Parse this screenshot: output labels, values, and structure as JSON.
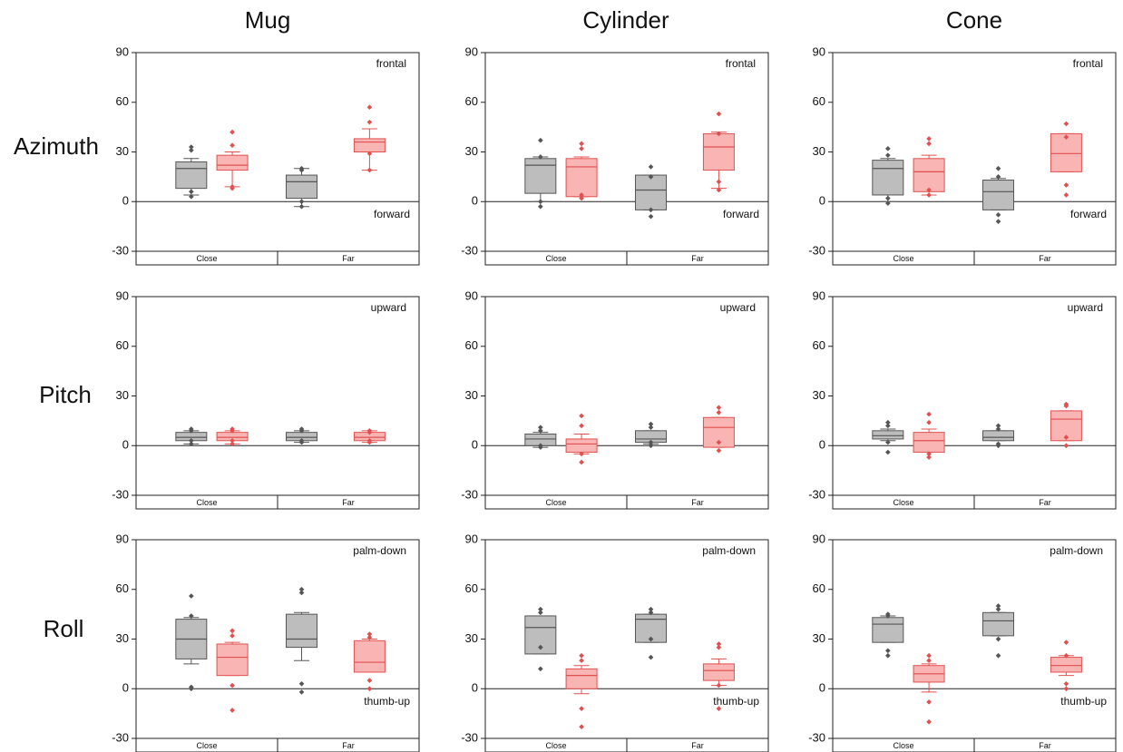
{
  "column_titles": [
    "Mug",
    "Cylinder",
    "Cone"
  ],
  "row_titles": [
    "Azimuth",
    "Pitch",
    "Roll"
  ],
  "chart_data": [
    {
      "type": "box",
      "categories": [
        "Close",
        "Far"
      ],
      "ylim": [
        -30,
        90
      ],
      "yticks": [
        -30,
        0,
        30,
        60,
        90
      ],
      "top_label": "frontal",
      "bottom_label": "forward",
      "series": [
        {
          "color": "#bdbdbd",
          "edge": "#555555",
          "boxes": [
            {
              "whislo": 4,
              "q1": 8,
              "med": 20,
              "q3": 24,
              "whishi": 26,
              "points": [
                3,
                6,
                31,
                33
              ]
            },
            {
              "whislo": -3,
              "q1": 2,
              "med": 12,
              "q3": 16,
              "whishi": 20,
              "points": [
                -3,
                0,
                19,
                20
              ]
            }
          ]
        },
        {
          "color": "#f9b4b4",
          "edge": "#e05050",
          "boxes": [
            {
              "whislo": 9,
              "q1": 19,
              "med": 22,
              "q3": 28,
              "whishi": 30,
              "points": [
                8,
                9,
                34,
                42
              ]
            },
            {
              "whislo": 19,
              "q1": 30,
              "med": 36,
              "q3": 38,
              "whishi": 44,
              "points": [
                19,
                29,
                48,
                57
              ]
            }
          ]
        }
      ]
    },
    {
      "type": "box",
      "categories": [
        "Close",
        "Far"
      ],
      "ylim": [
        -30,
        90
      ],
      "yticks": [
        -30,
        0,
        30,
        60,
        90
      ],
      "top_label": "frontal",
      "bottom_label": "forward",
      "series": [
        {
          "color": "#bdbdbd",
          "edge": "#555555",
          "boxes": [
            {
              "whislo": 0,
              "q1": 5,
              "med": 22,
              "q3": 26,
              "whishi": 27,
              "points": [
                -3,
                0,
                27,
                37
              ]
            },
            {
              "whislo": -5,
              "q1": -5,
              "med": 7,
              "q3": 16,
              "whishi": 16,
              "points": [
                -9,
                -5,
                15,
                21
              ]
            }
          ]
        },
        {
          "color": "#f9b4b4",
          "edge": "#e05050",
          "boxes": [
            {
              "whislo": 3,
              "q1": 3,
              "med": 21,
              "q3": 26,
              "whishi": 27,
              "points": [
                2,
                4,
                32,
                35
              ]
            },
            {
              "whislo": 8,
              "q1": 19,
              "med": 33,
              "q3": 41,
              "whishi": 42,
              "points": [
                7,
                12,
                41,
                53
              ]
            }
          ]
        }
      ]
    },
    {
      "type": "box",
      "categories": [
        "Close",
        "Far"
      ],
      "ylim": [
        -30,
        90
      ],
      "yticks": [
        -30,
        0,
        30,
        60,
        90
      ],
      "top_label": "frontal",
      "bottom_label": "forward",
      "series": [
        {
          "color": "#bdbdbd",
          "edge": "#555555",
          "boxes": [
            {
              "whislo": 0,
              "q1": 4,
              "med": 20,
              "q3": 25,
              "whishi": 26,
              "points": [
                -1,
                2,
                28,
                32
              ]
            },
            {
              "whislo": -5,
              "q1": -5,
              "med": 6,
              "q3": 13,
              "whishi": 14,
              "points": [
                -12,
                -8,
                15,
                20
              ]
            }
          ]
        },
        {
          "color": "#f9b4b4",
          "edge": "#e05050",
          "boxes": [
            {
              "whislo": 4,
              "q1": 6,
              "med": 18,
              "q3": 26,
              "whishi": 28,
              "points": [
                4,
                7,
                35,
                38
              ]
            },
            {
              "whislo": 18,
              "q1": 18,
              "med": 29,
              "q3": 41,
              "whishi": 41,
              "points": [
                4,
                10,
                39,
                47
              ]
            }
          ]
        }
      ]
    },
    {
      "type": "box",
      "categories": [
        "Close",
        "Far"
      ],
      "ylim": [
        -30,
        90
      ],
      "yticks": [
        -30,
        0,
        30,
        60,
        90
      ],
      "top_label": "upward",
      "series": [
        {
          "color": "#bdbdbd",
          "edge": "#555555",
          "boxes": [
            {
              "whislo": 1,
              "q1": 3,
              "med": 5,
              "q3": 8,
              "whishi": 9,
              "points": [
                1,
                3,
                9,
                10
              ]
            },
            {
              "whislo": 2,
              "q1": 3,
              "med": 5,
              "q3": 8,
              "whishi": 9,
              "points": [
                2,
                3,
                9,
                10
              ]
            }
          ]
        },
        {
          "color": "#f9b4b4",
          "edge": "#e05050",
          "boxes": [
            {
              "whislo": 1,
              "q1": 3,
              "med": 5,
              "q3": 8,
              "whishi": 9,
              "points": [
                1,
                3,
                9,
                10
              ]
            },
            {
              "whislo": 2,
              "q1": 3,
              "med": 5,
              "q3": 8,
              "whishi": 9,
              "points": [
                2,
                3,
                8,
                9
              ]
            }
          ]
        }
      ]
    },
    {
      "type": "box",
      "categories": [
        "Close",
        "Far"
      ],
      "ylim": [
        -30,
        90
      ],
      "yticks": [
        -30,
        0,
        30,
        60,
        90
      ],
      "top_label": "upward",
      "series": [
        {
          "color": "#bdbdbd",
          "edge": "#555555",
          "boxes": [
            {
              "whislo": -1,
              "q1": 0,
              "med": 4,
              "q3": 7,
              "whishi": 8,
              "points": [
                -1,
                0,
                9,
                11
              ]
            },
            {
              "whislo": 1,
              "q1": 2,
              "med": 4,
              "q3": 9,
              "whishi": 9,
              "points": [
                0,
                2,
                11,
                13
              ]
            }
          ]
        },
        {
          "color": "#f9b4b4",
          "edge": "#e05050",
          "boxes": [
            {
              "whislo": -5,
              "q1": -4,
              "med": 1,
              "q3": 4,
              "whishi": 7,
              "points": [
                -10,
                -5,
                12,
                18
              ]
            },
            {
              "whislo": -1,
              "q1": -1,
              "med": 11,
              "q3": 17,
              "whishi": 17,
              "points": [
                -3,
                2,
                20,
                23
              ]
            }
          ]
        }
      ]
    },
    {
      "type": "box",
      "categories": [
        "Close",
        "Far"
      ],
      "ylim": [
        -30,
        90
      ],
      "yticks": [
        -30,
        0,
        30,
        60,
        90
      ],
      "top_label": "upward",
      "series": [
        {
          "color": "#bdbdbd",
          "edge": "#555555",
          "boxes": [
            {
              "whislo": 3,
              "q1": 4,
              "med": 6,
              "q3": 9,
              "whishi": 10,
              "points": [
                -4,
                2,
                12,
                14
              ]
            },
            {
              "whislo": 3,
              "q1": 3,
              "med": 5,
              "q3": 9,
              "whishi": 9,
              "points": [
                0,
                1,
                10,
                12
              ]
            }
          ]
        },
        {
          "color": "#f9b4b4",
          "edge": "#e05050",
          "boxes": [
            {
              "whislo": -4,
              "q1": -4,
              "med": 3,
              "q3": 8,
              "whishi": 10,
              "points": [
                -7,
                -5,
                14,
                19
              ]
            },
            {
              "whislo": 3,
              "q1": 3,
              "med": 16,
              "q3": 21,
              "whishi": 21,
              "points": [
                0,
                5,
                24,
                25
              ]
            }
          ]
        }
      ]
    },
    {
      "type": "box",
      "categories": [
        "Close",
        "Far"
      ],
      "ylim": [
        -30,
        90
      ],
      "yticks": [
        -30,
        0,
        30,
        60,
        90
      ],
      "top_label": "palm-down",
      "bottom_label": "thumb-up",
      "series": [
        {
          "color": "#bdbdbd",
          "edge": "#555555",
          "boxes": [
            {
              "whislo": 15,
              "q1": 18,
              "med": 30,
              "q3": 42,
              "whishi": 43,
              "points": [
                0,
                1,
                44,
                56
              ]
            },
            {
              "whislo": 17,
              "q1": 25,
              "med": 30,
              "q3": 45,
              "whishi": 46,
              "points": [
                -2,
                3,
                58,
                60
              ]
            }
          ]
        },
        {
          "color": "#f9b4b4",
          "edge": "#e05050",
          "boxes": [
            {
              "whislo": 8,
              "q1": 8,
              "med": 19,
              "q3": 27,
              "whishi": 28,
              "points": [
                -13,
                2,
                32,
                35
              ]
            },
            {
              "whislo": 10,
              "q1": 10,
              "med": 16,
              "q3": 29,
              "whishi": 30,
              "points": [
                0,
                5,
                31,
                33
              ]
            }
          ]
        }
      ]
    },
    {
      "type": "box",
      "categories": [
        "Close",
        "Far"
      ],
      "ylim": [
        -30,
        90
      ],
      "yticks": [
        -30,
        0,
        30,
        60,
        90
      ],
      "top_label": "palm-down",
      "bottom_label": "thumb-up",
      "series": [
        {
          "color": "#bdbdbd",
          "edge": "#555555",
          "boxes": [
            {
              "whislo": 21,
              "q1": 21,
              "med": 37,
              "q3": 44,
              "whishi": 44,
              "points": [
                12,
                25,
                46,
                48
              ]
            },
            {
              "whislo": 28,
              "q1": 28,
              "med": 42,
              "q3": 45,
              "whishi": 45,
              "points": [
                19,
                30,
                46,
                48
              ]
            }
          ]
        },
        {
          "color": "#f9b4b4",
          "edge": "#e05050",
          "boxes": [
            {
              "whislo": -3,
              "q1": 0,
              "med": 8,
              "q3": 12,
              "whishi": 14,
              "points": [
                -23,
                -12,
                17,
                20
              ]
            },
            {
              "whislo": 2,
              "q1": 5,
              "med": 11,
              "q3": 15,
              "whishi": 18,
              "points": [
                -12,
                2,
                25,
                27
              ]
            }
          ]
        }
      ]
    },
    {
      "type": "box",
      "categories": [
        "Close",
        "Far"
      ],
      "ylim": [
        -30,
        90
      ],
      "yticks": [
        -30,
        0,
        30,
        60,
        90
      ],
      "top_label": "palm-down",
      "bottom_label": "thumb-up",
      "series": [
        {
          "color": "#bdbdbd",
          "edge": "#555555",
          "boxes": [
            {
              "whislo": 28,
              "q1": 28,
              "med": 39,
              "q3": 43,
              "whishi": 44,
              "points": [
                20,
                23,
                44,
                45
              ]
            },
            {
              "whislo": 32,
              "q1": 32,
              "med": 41,
              "q3": 46,
              "whishi": 46,
              "points": [
                20,
                30,
                48,
                50
              ]
            }
          ]
        },
        {
          "color": "#f9b4b4",
          "edge": "#e05050",
          "boxes": [
            {
              "whislo": -2,
              "q1": 4,
              "med": 9,
              "q3": 14,
              "whishi": 15,
              "points": [
                -20,
                -8,
                17,
                20
              ]
            },
            {
              "whislo": 8,
              "q1": 10,
              "med": 14,
              "q3": 19,
              "whishi": 20,
              "points": [
                0,
                3,
                20,
                28
              ]
            }
          ]
        }
      ]
    }
  ]
}
